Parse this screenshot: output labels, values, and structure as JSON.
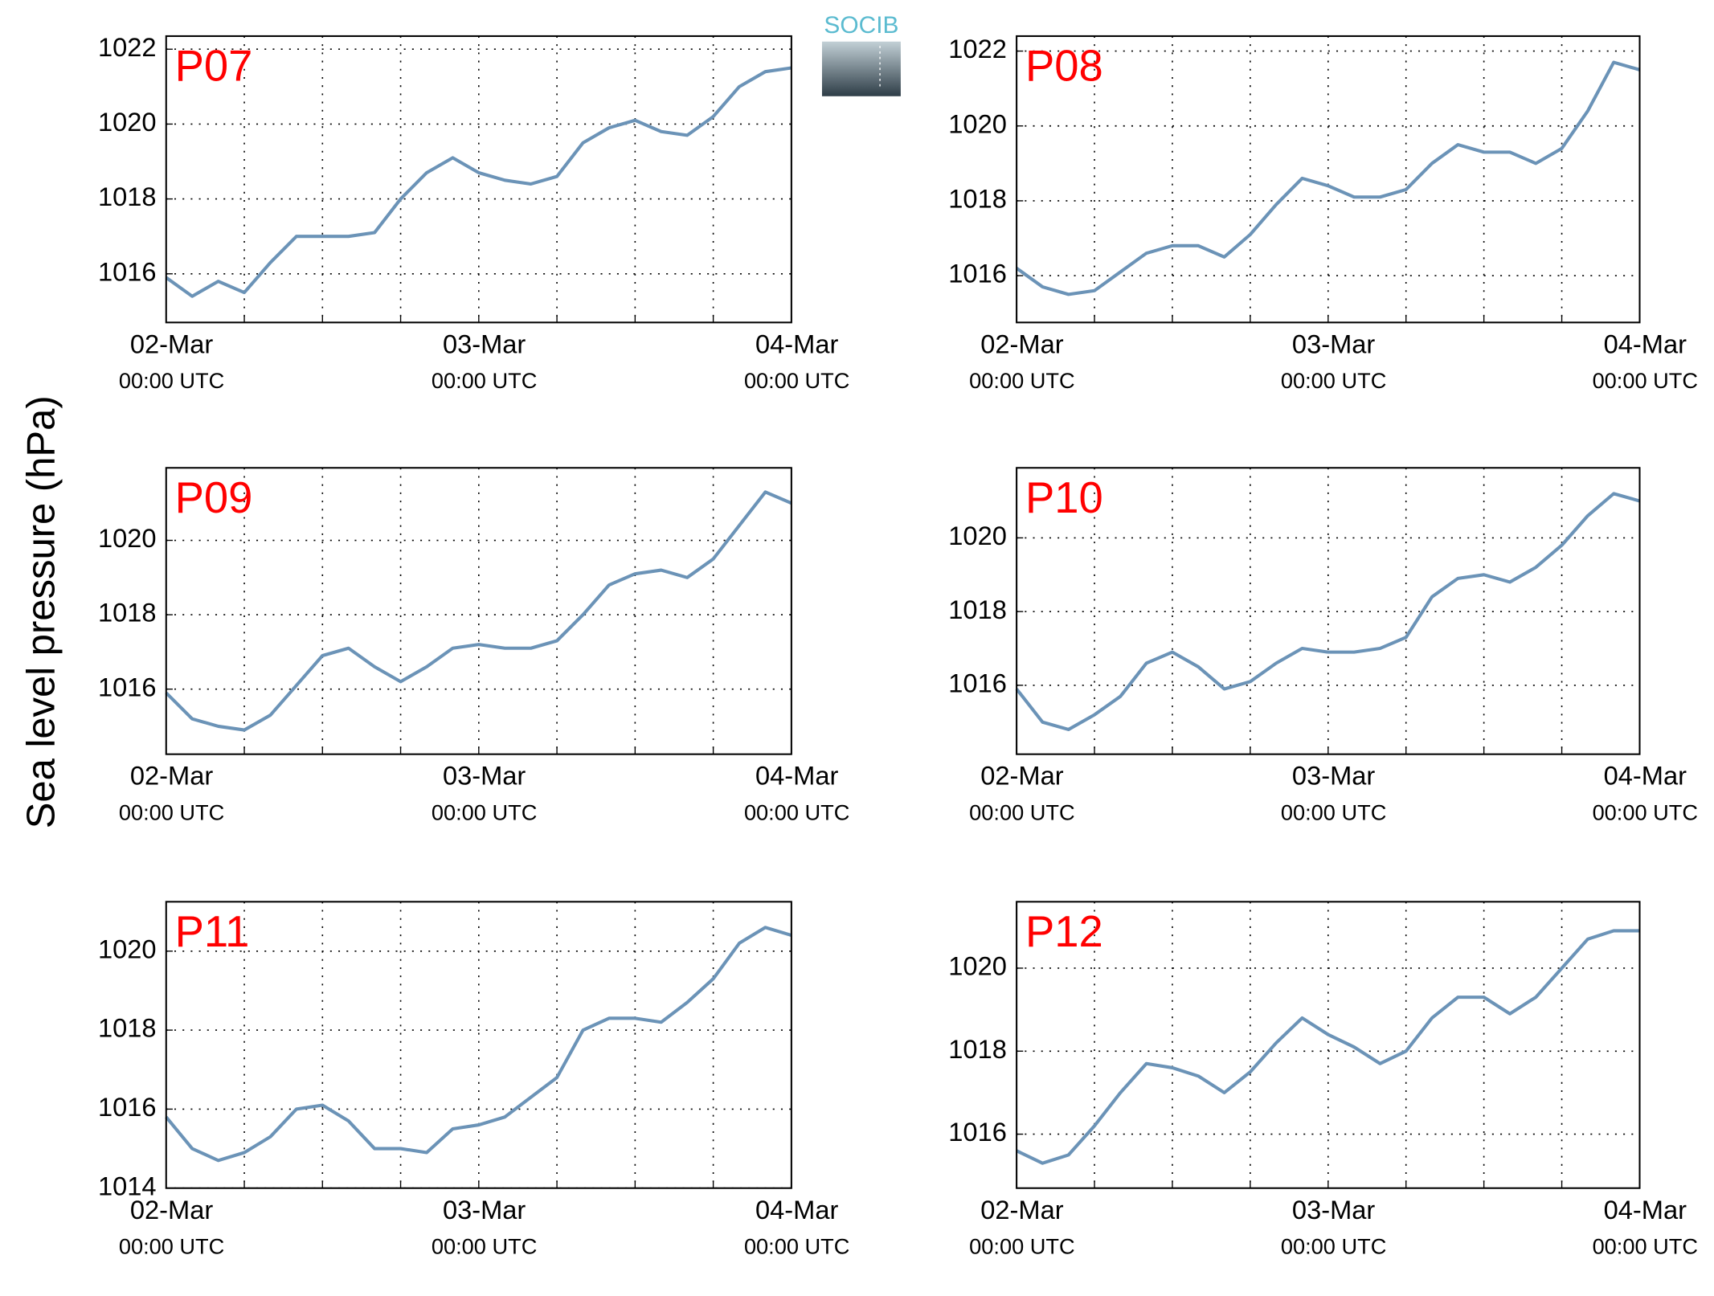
{
  "ylabel": "Sea level pressure (hPa)",
  "logo": "SOCIB",
  "chart_data": [
    {
      "type": "line",
      "title": "P07",
      "x": [
        0,
        2,
        4,
        6,
        8,
        10,
        12,
        14,
        16,
        18,
        20,
        22,
        24,
        26,
        28,
        30,
        32,
        34,
        36,
        38,
        40,
        42,
        44,
        46,
        48
      ],
      "series": [
        {
          "color": "#6b93b7",
          "values": [
            1015.9,
            1015.4,
            1015.8,
            1015.5,
            1016.3,
            1017.0,
            1017.0,
            1017.0,
            1017.1,
            1018.0,
            1018.7,
            1019.1,
            1018.7,
            1018.5,
            1018.4,
            1018.6,
            1019.5,
            1019.9,
            1020.1,
            1019.8,
            1019.7,
            1020.2,
            1021.0,
            1021.4,
            1021.5
          ]
        }
      ],
      "xlim": [
        0,
        48
      ],
      "ylim": [
        1014.7,
        1022.35
      ],
      "yticks": [
        1016,
        1018,
        1020,
        1022
      ],
      "xticks": [
        {
          "value": 0,
          "label": [
            "02-Mar",
            "00:00 UTC"
          ]
        },
        {
          "value": 6,
          "label": null
        },
        {
          "value": 12,
          "label": null
        },
        {
          "value": 18,
          "label": null
        },
        {
          "value": 24,
          "label": [
            "03-Mar",
            "00:00 UTC"
          ]
        },
        {
          "value": 30,
          "label": null
        },
        {
          "value": 36,
          "label": null
        },
        {
          "value": 42,
          "label": null
        },
        {
          "value": 48,
          "label": [
            "04-Mar",
            "00:00 UTC"
          ]
        }
      ],
      "grid": true
    },
    {
      "type": "line",
      "title": "P08",
      "x": [
        0,
        2,
        4,
        6,
        8,
        10,
        12,
        14,
        16,
        18,
        20,
        22,
        24,
        26,
        28,
        30,
        32,
        34,
        36,
        38,
        40,
        42,
        44,
        46,
        48
      ],
      "series": [
        {
          "color": "#6b93b7",
          "values": [
            1016.2,
            1015.7,
            1015.5,
            1015.6,
            1016.1,
            1016.6,
            1016.8,
            1016.8,
            1016.5,
            1017.1,
            1017.9,
            1018.6,
            1018.4,
            1018.1,
            1018.1,
            1018.3,
            1019.0,
            1019.5,
            1019.3,
            1019.3,
            1019.0,
            1019.4,
            1020.4,
            1021.7,
            1021.5
          ]
        }
      ],
      "xlim": [
        0,
        48
      ],
      "ylim": [
        1014.75,
        1022.4
      ],
      "yticks": [
        1016,
        1018,
        1020,
        1022
      ],
      "xticks": [
        {
          "value": 0,
          "label": [
            "02-Mar",
            "00:00 UTC"
          ]
        },
        {
          "value": 6,
          "label": null
        },
        {
          "value": 12,
          "label": null
        },
        {
          "value": 18,
          "label": null
        },
        {
          "value": 24,
          "label": [
            "03-Mar",
            "00:00 UTC"
          ]
        },
        {
          "value": 30,
          "label": null
        },
        {
          "value": 36,
          "label": null
        },
        {
          "value": 42,
          "label": null
        },
        {
          "value": 48,
          "label": [
            "04-Mar",
            "00:00 UTC"
          ]
        }
      ],
      "grid": true
    },
    {
      "type": "line",
      "title": "P09",
      "x": [
        0,
        2,
        4,
        6,
        8,
        10,
        12,
        14,
        16,
        18,
        20,
        22,
        24,
        26,
        28,
        30,
        32,
        34,
        36,
        38,
        40,
        42,
        44,
        46,
        48
      ],
      "series": [
        {
          "color": "#6b93b7",
          "values": [
            1015.9,
            1015.2,
            1015.0,
            1014.9,
            1015.3,
            1016.1,
            1016.9,
            1017.1,
            1016.6,
            1016.2,
            1016.6,
            1017.1,
            1017.2,
            1017.1,
            1017.1,
            1017.3,
            1018.0,
            1018.8,
            1019.1,
            1019.2,
            1019.0,
            1019.5,
            1020.4,
            1021.3,
            1021.0
          ]
        }
      ],
      "xlim": [
        0,
        48
      ],
      "ylim": [
        1014.25,
        1021.95
      ],
      "yticks": [
        1016,
        1018,
        1020
      ],
      "xticks": [
        {
          "value": 0,
          "label": [
            "02-Mar",
            "00:00 UTC"
          ]
        },
        {
          "value": 6,
          "label": null
        },
        {
          "value": 12,
          "label": null
        },
        {
          "value": 18,
          "label": null
        },
        {
          "value": 24,
          "label": [
            "03-Mar",
            "00:00 UTC"
          ]
        },
        {
          "value": 30,
          "label": null
        },
        {
          "value": 36,
          "label": null
        },
        {
          "value": 42,
          "label": null
        },
        {
          "value": 48,
          "label": [
            "04-Mar",
            "00:00 UTC"
          ]
        }
      ],
      "grid": true
    },
    {
      "type": "line",
      "title": "P10",
      "x": [
        0,
        2,
        4,
        6,
        8,
        10,
        12,
        14,
        16,
        18,
        20,
        22,
        24,
        26,
        28,
        30,
        32,
        34,
        36,
        38,
        40,
        42,
        44,
        46,
        48
      ],
      "series": [
        {
          "color": "#6b93b7",
          "values": [
            1015.9,
            1015.0,
            1014.8,
            1015.2,
            1015.7,
            1016.6,
            1016.9,
            1016.5,
            1015.9,
            1016.1,
            1016.6,
            1017.0,
            1016.9,
            1016.9,
            1017.0,
            1017.3,
            1018.4,
            1018.9,
            1019.0,
            1018.8,
            1019.2,
            1019.8,
            1020.6,
            1021.2,
            1021.0
          ]
        }
      ],
      "xlim": [
        0,
        48
      ],
      "ylim": [
        1014.13,
        1021.9
      ],
      "yticks": [
        1016,
        1018,
        1020
      ],
      "xticks": [
        {
          "value": 0,
          "label": [
            "02-Mar",
            "00:00 UTC"
          ]
        },
        {
          "value": 6,
          "label": null
        },
        {
          "value": 12,
          "label": null
        },
        {
          "value": 18,
          "label": null
        },
        {
          "value": 24,
          "label": [
            "03-Mar",
            "00:00 UTC"
          ]
        },
        {
          "value": 30,
          "label": null
        },
        {
          "value": 36,
          "label": null
        },
        {
          "value": 42,
          "label": null
        },
        {
          "value": 48,
          "label": [
            "04-Mar",
            "00:00 UTC"
          ]
        }
      ],
      "grid": true
    },
    {
      "type": "line",
      "title": "P11",
      "x": [
        0,
        2,
        4,
        6,
        8,
        10,
        12,
        14,
        16,
        18,
        20,
        22,
        24,
        26,
        28,
        30,
        32,
        34,
        36,
        38,
        40,
        42,
        44,
        46,
        48
      ],
      "series": [
        {
          "color": "#6b93b7",
          "values": [
            1015.8,
            1015.0,
            1014.7,
            1014.9,
            1015.3,
            1016.0,
            1016.1,
            1015.7,
            1015.0,
            1015.0,
            1014.9,
            1015.5,
            1015.6,
            1015.8,
            1016.3,
            1016.8,
            1018.0,
            1018.3,
            1018.3,
            1018.2,
            1018.7,
            1019.3,
            1020.2,
            1020.6,
            1020.4
          ]
        }
      ],
      "xlim": [
        0,
        48
      ],
      "ylim": [
        1014,
        1021.25
      ],
      "yticks": [
        1014,
        1016,
        1018,
        1020
      ],
      "xticks": [
        {
          "value": 0,
          "label": [
            "02-Mar",
            "00:00 UTC"
          ]
        },
        {
          "value": 6,
          "label": null
        },
        {
          "value": 12,
          "label": null
        },
        {
          "value": 18,
          "label": null
        },
        {
          "value": 24,
          "label": [
            "03-Mar",
            "00:00 UTC"
          ]
        },
        {
          "value": 30,
          "label": null
        },
        {
          "value": 36,
          "label": null
        },
        {
          "value": 42,
          "label": null
        },
        {
          "value": 48,
          "label": [
            "04-Mar",
            "00:00 UTC"
          ]
        }
      ],
      "grid": true
    },
    {
      "type": "line",
      "title": "P12",
      "x": [
        0,
        2,
        4,
        6,
        8,
        10,
        12,
        14,
        16,
        18,
        20,
        22,
        24,
        26,
        28,
        30,
        32,
        34,
        36,
        38,
        40,
        42,
        44,
        46,
        48
      ],
      "series": [
        {
          "color": "#6b93b7",
          "values": [
            1015.6,
            1015.3,
            1015.5,
            1016.2,
            1017.0,
            1017.7,
            1017.6,
            1017.4,
            1017.0,
            1017.5,
            1018.2,
            1018.8,
            1018.4,
            1018.1,
            1017.7,
            1018.0,
            1018.8,
            1019.3,
            1019.3,
            1018.9,
            1019.3,
            1020.0,
            1020.7,
            1020.9,
            1020.9
          ]
        }
      ],
      "xlim": [
        0,
        48
      ],
      "ylim": [
        1014.7,
        1021.6
      ],
      "yticks": [
        1016,
        1018,
        1020
      ],
      "xticks": [
        {
          "value": 0,
          "label": [
            "02-Mar",
            "00:00 UTC"
          ]
        },
        {
          "value": 6,
          "label": null
        },
        {
          "value": 12,
          "label": null
        },
        {
          "value": 18,
          "label": null
        },
        {
          "value": 24,
          "label": [
            "03-Mar",
            "00:00 UTC"
          ]
        },
        {
          "value": 30,
          "label": null
        },
        {
          "value": 36,
          "label": null
        },
        {
          "value": 42,
          "label": null
        },
        {
          "value": 48,
          "label": [
            "04-Mar",
            "00:00 UTC"
          ]
        }
      ],
      "grid": true
    }
  ]
}
